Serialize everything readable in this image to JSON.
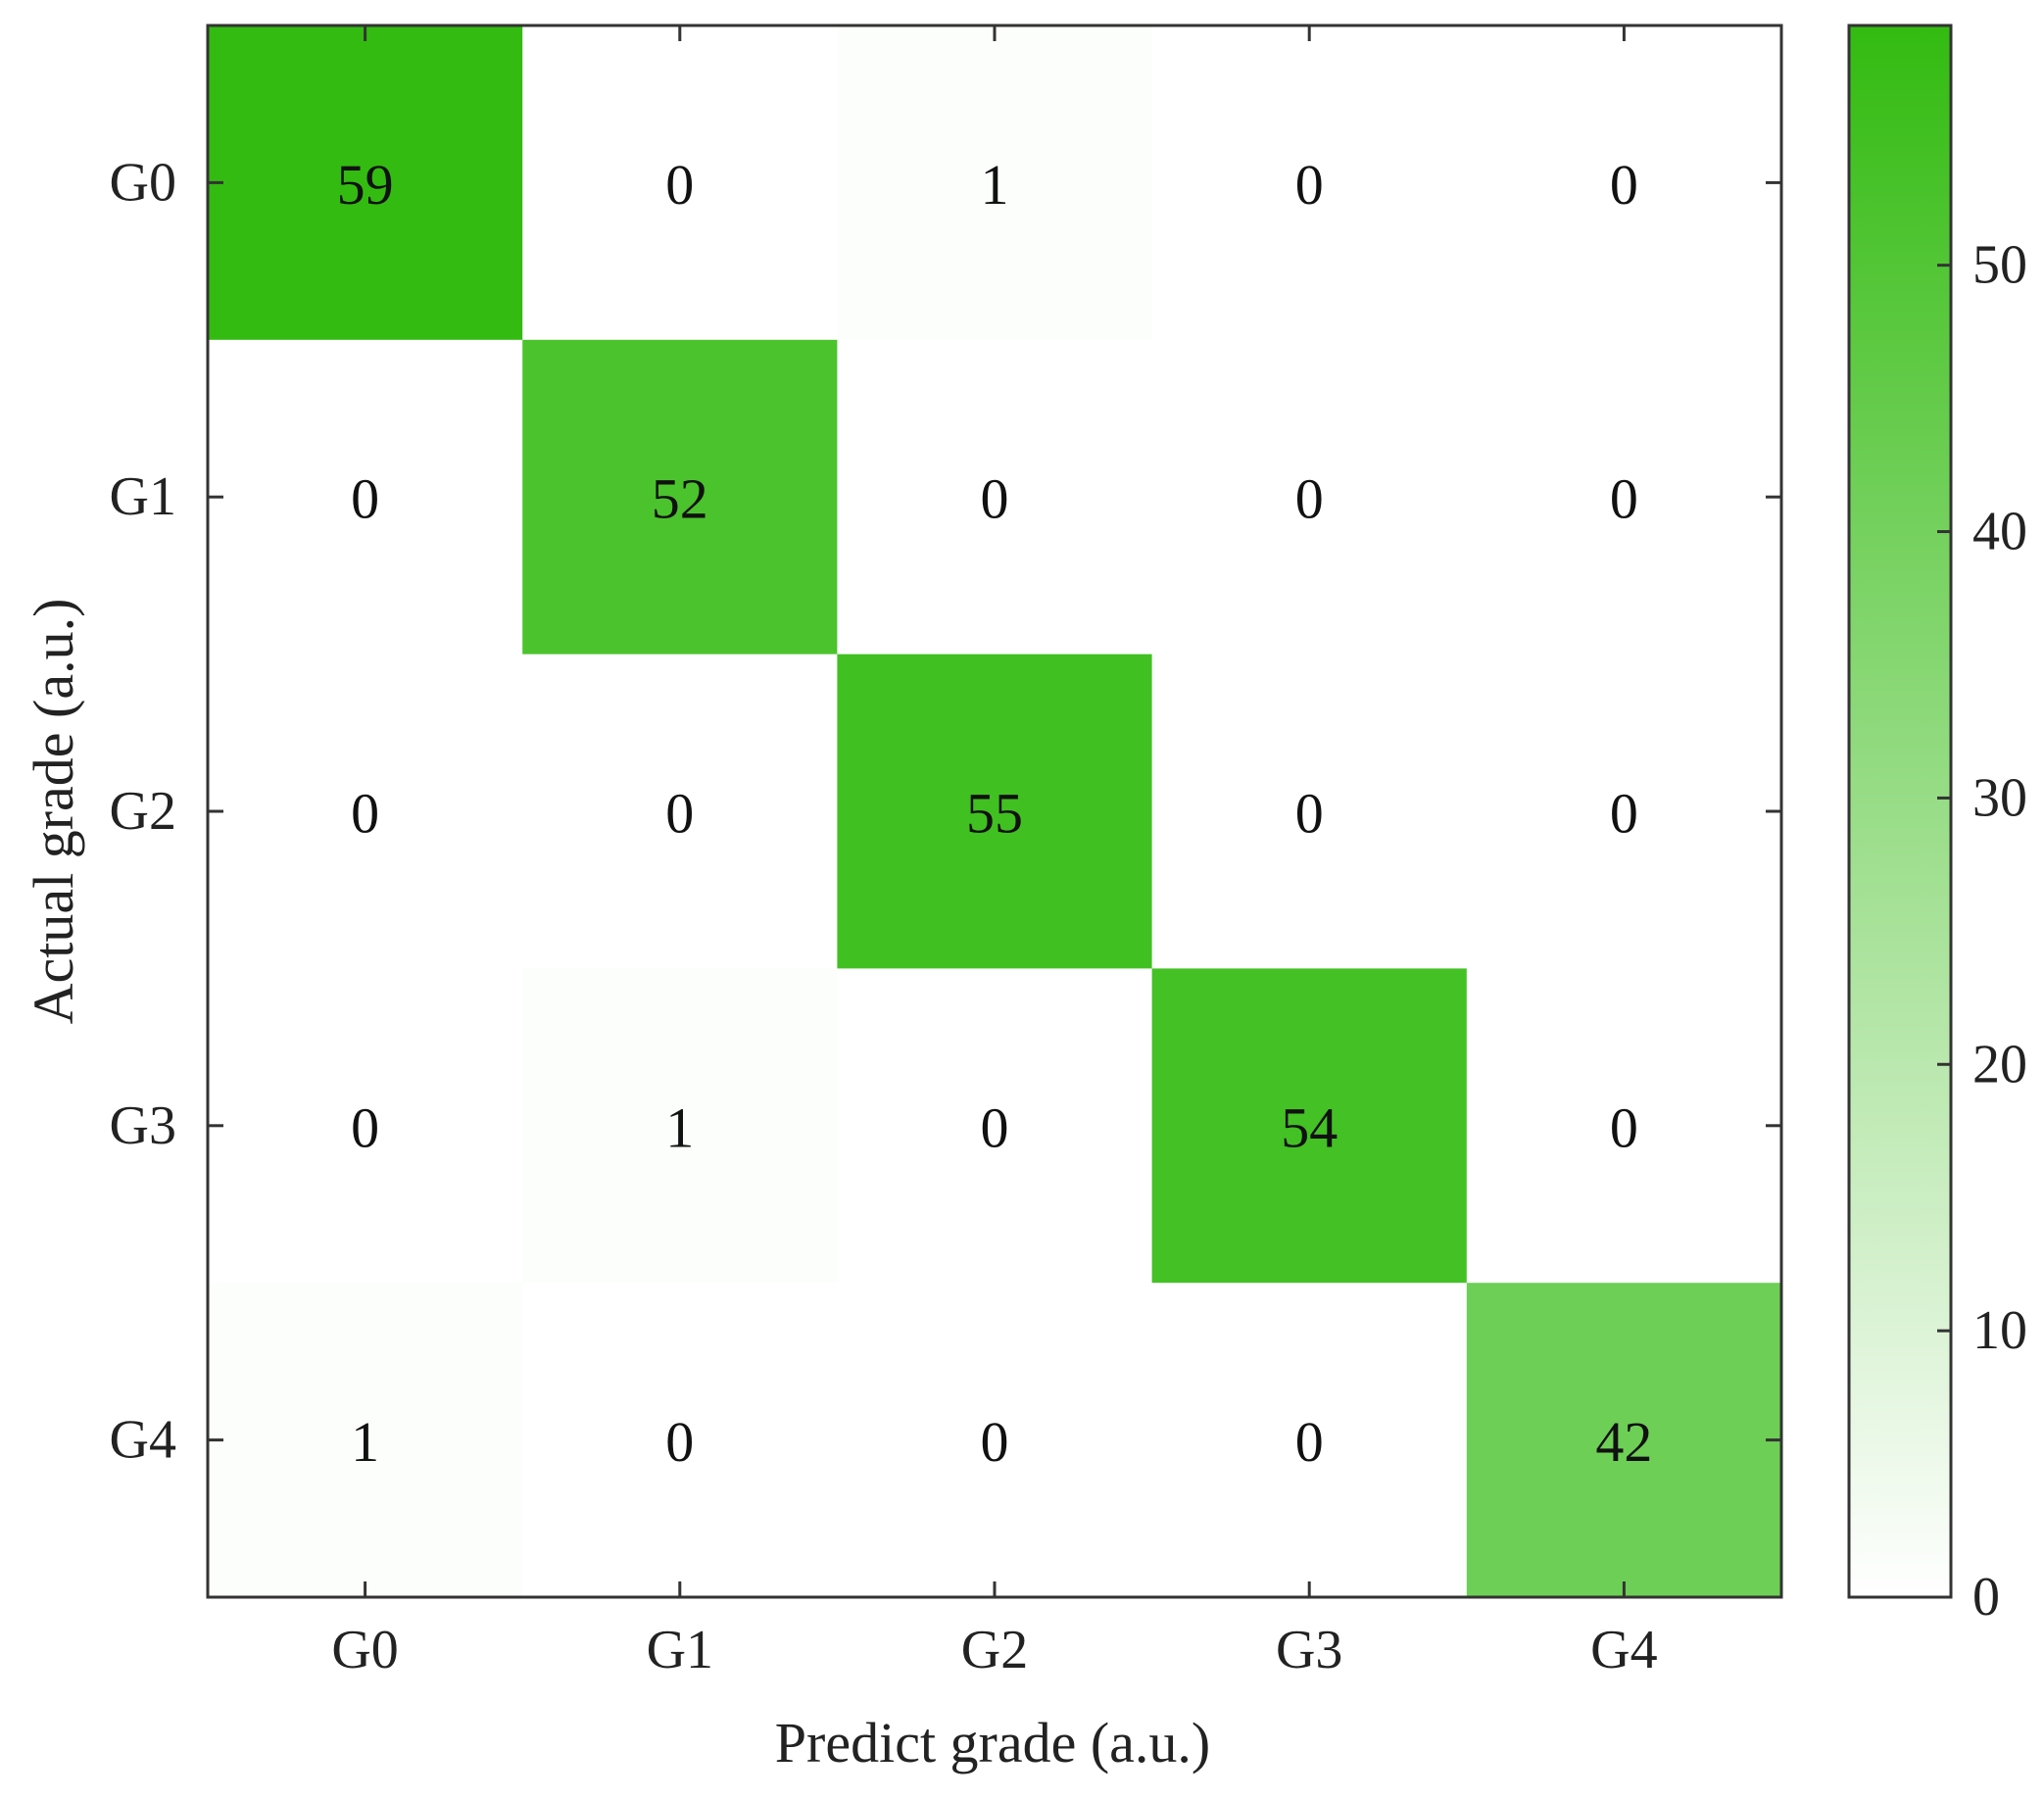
{
  "chart_data": {
    "type": "heatmap",
    "title": "",
    "xlabel": "Predict grade (a.u.)",
    "ylabel": "Actual grade (a.u.)",
    "x_categories": [
      "G0",
      "G1",
      "G2",
      "G3",
      "G4"
    ],
    "y_categories": [
      "G0",
      "G1",
      "G2",
      "G3",
      "G4"
    ],
    "matrix": [
      [
        59,
        0,
        1,
        0,
        0
      ],
      [
        0,
        52,
        0,
        0,
        0
      ],
      [
        0,
        0,
        55,
        0,
        0
      ],
      [
        0,
        1,
        0,
        54,
        0
      ],
      [
        1,
        0,
        0,
        0,
        42
      ]
    ],
    "colorbar": {
      "min": 0,
      "max": 59,
      "ticks": [
        0,
        10,
        20,
        30,
        40,
        50
      ],
      "tick_labels": [
        "0",
        "10",
        "20",
        "30",
        "40",
        "50"
      ],
      "color_low": "#ffffff",
      "color_high": "#33bb11"
    },
    "grid": false,
    "legend": "none"
  }
}
